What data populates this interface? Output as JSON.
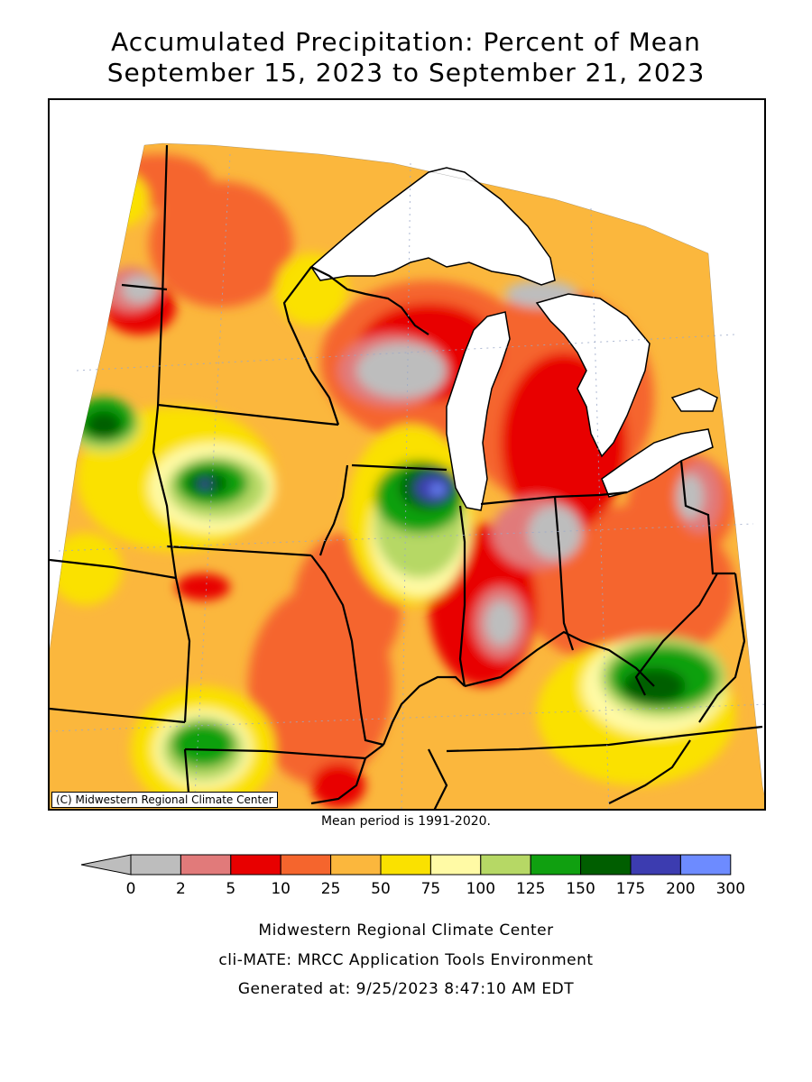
{
  "title_line1": "Accumulated Precipitation: Percent of Mean",
  "title_line2": "September 15, 2023 to September 21, 2023",
  "copyright": "(C) Midwestern Regional Climate Center",
  "mean_period": "Mean period is 1991-2020.",
  "legend": {
    "ticks": [
      "0",
      "2",
      "5",
      "10",
      "25",
      "50",
      "75",
      "100",
      "125",
      "150",
      "175",
      "200",
      "300"
    ],
    "colors": [
      "#bdbdbd",
      "#e17a7a",
      "#e80000",
      "#f5652d",
      "#fbb73d",
      "#fae100",
      "#fffaa5",
      "#b6d865",
      "#10a010",
      "#005e00",
      "#3c3cb0",
      "#6d8bff"
    ]
  },
  "footer": {
    "line1": "Midwestern Regional Climate Center",
    "line2": "cli-MATE: MRCC Application Tools Environment",
    "line3": "Generated at: 9/25/2023 8:47:10 AM EDT"
  }
}
